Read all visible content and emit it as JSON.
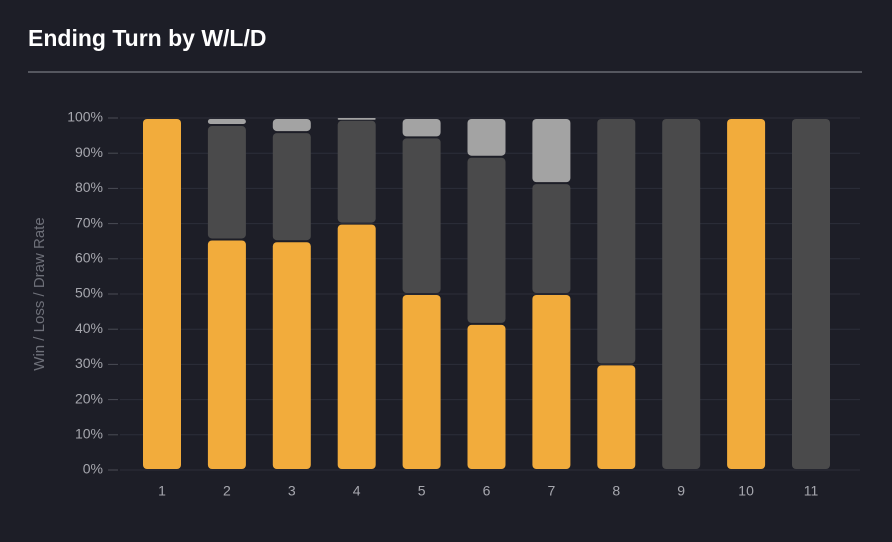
{
  "chart_data": {
    "type": "stacked_bar",
    "title": "Ending Turn by W/L/D",
    "y_label": "Win / Loss / Draw Rate",
    "categories": [
      "1",
      "2",
      "3",
      "4",
      "5",
      "6",
      "7",
      "8",
      "9",
      "10",
      "11"
    ],
    "series": [
      {
        "color": "#f2ac3c",
        "values": [
          100,
          65.5,
          65,
          70,
          50,
          41.5,
          50,
          30,
          0,
          100,
          0
        ]
      },
      {
        "color": "#4a4a4b",
        "values": [
          0,
          32.5,
          31,
          29.5,
          44.5,
          47.5,
          31.5,
          70,
          100,
          0,
          100
        ]
      },
      {
        "color": "#a3a3a3",
        "values": [
          0,
          2,
          4,
          0.5,
          5.5,
          11,
          18.5,
          0,
          0,
          0,
          0
        ]
      }
    ],
    "ylim": [
      0,
      100
    ],
    "yticks": [
      {
        "value": 0,
        "label": "0%"
      },
      {
        "value": 10,
        "label": "10%"
      },
      {
        "value": 20,
        "label": "20%"
      },
      {
        "value": 30,
        "label": "30%"
      },
      {
        "value": 40,
        "label": "40%"
      },
      {
        "value": 50,
        "label": "50%"
      },
      {
        "value": 60,
        "label": "60%"
      },
      {
        "value": 70,
        "label": "70%"
      },
      {
        "value": 80,
        "label": "80%"
      },
      {
        "value": 90,
        "label": "90%"
      },
      {
        "value": 100,
        "label": "100%"
      }
    ],
    "grid": true
  }
}
